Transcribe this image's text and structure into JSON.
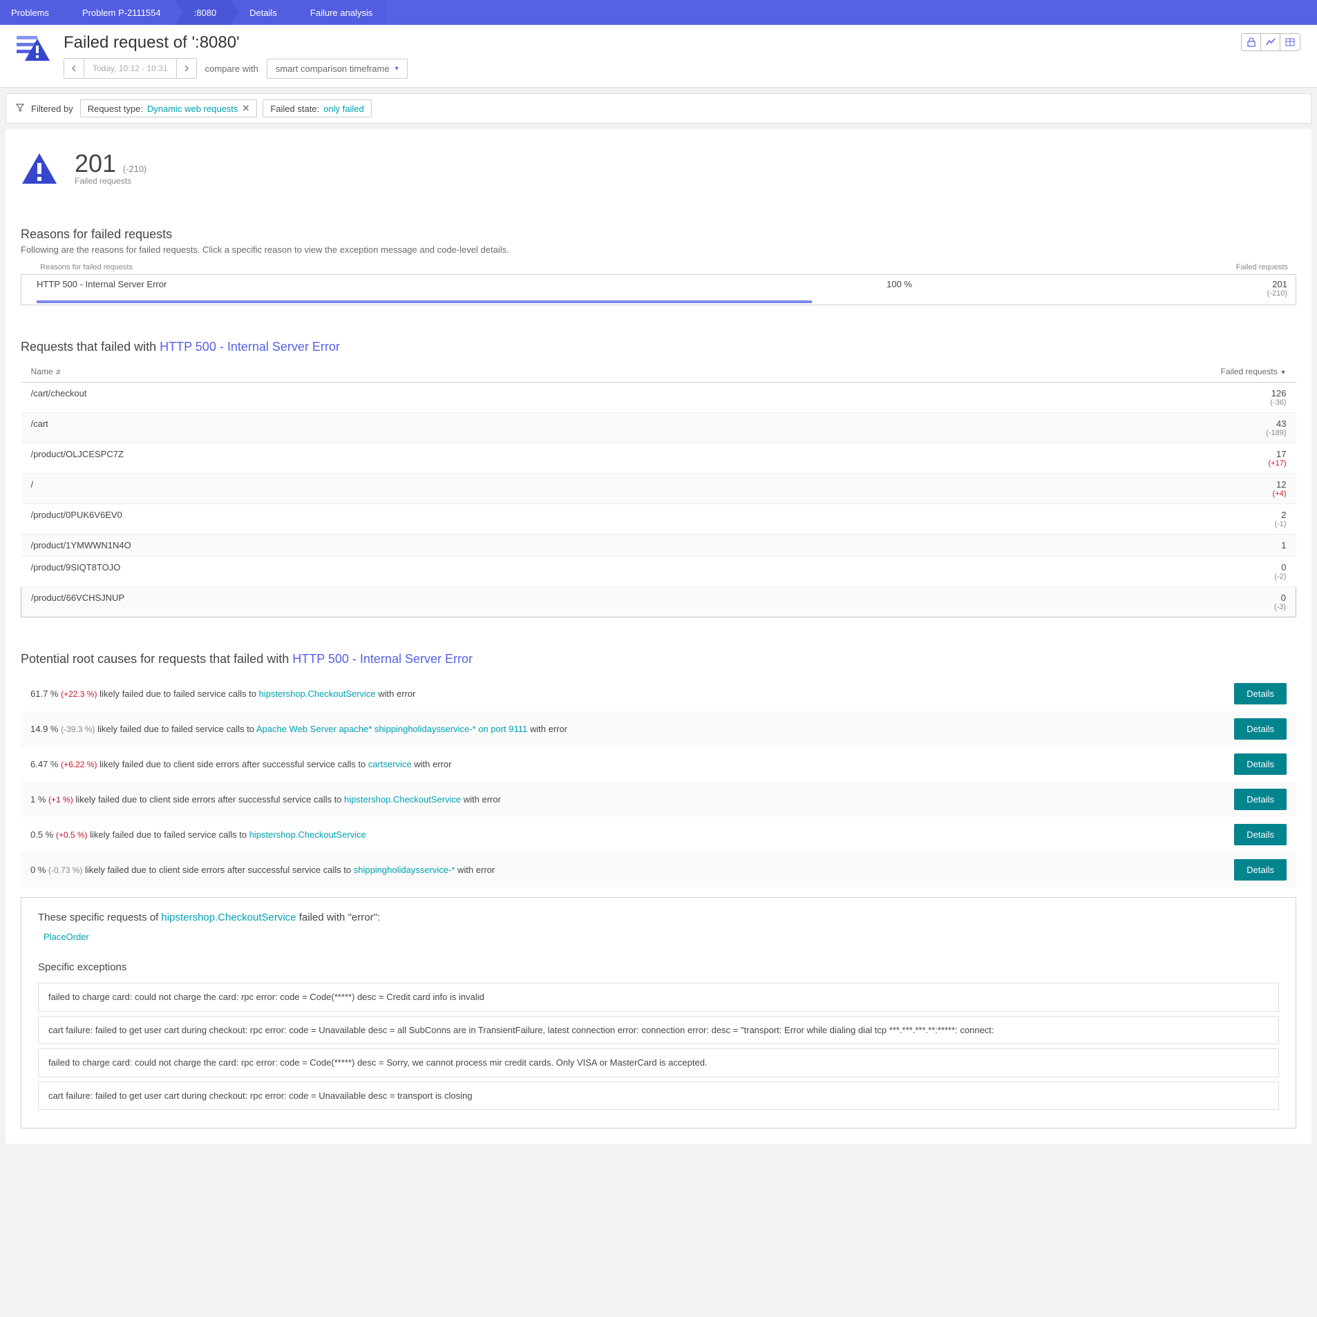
{
  "breadcrumb": [
    {
      "label": "Problems",
      "hl": false
    },
    {
      "label": "Problem P-2111554",
      "hl": false
    },
    {
      "label": ":8080",
      "hl": true
    },
    {
      "label": "Details",
      "hl": false
    },
    {
      "label": "Failure analysis",
      "hl": false
    }
  ],
  "page_title": "Failed request of ':8080'",
  "time_label": "Today, 10:12 - 10:31",
  "compare_label": "compare with",
  "compare_dropdown": "smart comparison timeframe",
  "filter": {
    "filtered_by": "Filtered by",
    "chips": [
      {
        "label": "Request type:",
        "value": "Dynamic web requests",
        "closable": true
      },
      {
        "label": "Failed state:",
        "value": "only failed",
        "closable": false
      }
    ]
  },
  "summary": {
    "count": "201",
    "delta": "(-210)",
    "label": "Failed requests",
    "triangle_color": "#3646cc"
  },
  "reasons": {
    "title": "Reasons for failed requests",
    "desc": "Following are the reasons for failed requests. Click a specific reason to view the exception message and code-level details.",
    "head_left": "Reasons for failed requests",
    "head_right": "Failed requests",
    "row": {
      "name": "HTTP 500 - Internal Server Error",
      "pct": "100 %",
      "count": "201",
      "delta": "(-210)",
      "bar_pct": 62,
      "bar_color": "#7a87ef"
    }
  },
  "requests": {
    "title_prefix": "Requests that failed with ",
    "title_link": "HTTP 500 - Internal Server Error",
    "col_name": "Name",
    "col_fr": "Failed requests",
    "rows": [
      {
        "name": "/cart/checkout",
        "count": "126",
        "delta": "(-36)",
        "pos": false
      },
      {
        "name": "/cart",
        "count": "43",
        "delta": "(-189)",
        "pos": false
      },
      {
        "name": "/product/OLJCESPC7Z",
        "count": "17",
        "delta": "(+17)",
        "pos": true
      },
      {
        "name": "/",
        "count": "12",
        "delta": "(+4)",
        "pos": true
      },
      {
        "name": "/product/0PUK6V6EV0",
        "count": "2",
        "delta": "(-1)",
        "pos": false
      },
      {
        "name": "/product/1YMWWN1N4O",
        "count": "1",
        "delta": "",
        "pos": false
      },
      {
        "name": "/product/9SIQT8TOJO",
        "count": "0",
        "delta": "(-2)",
        "pos": false
      },
      {
        "name": "/product/66VCHSJNUP",
        "count": "0",
        "delta": "(-3)",
        "pos": false
      }
    ]
  },
  "root_causes": {
    "title_prefix": "Potential root causes for requests that failed with ",
    "title_link": "HTTP 500 - Internal Server Error",
    "details_btn": "Details",
    "rows": [
      {
        "pct": "61.7 %",
        "dpct": "(+22.3 %)",
        "pos": true,
        "text_pre": " likely failed due to failed service calls to ",
        "svc": "hipstershop.CheckoutService",
        "text_post": " with error"
      },
      {
        "pct": "14.9 %",
        "dpct": "(-39.3 %)",
        "pos": false,
        "text_pre": " likely failed due to failed service calls to ",
        "svc": "Apache Web Server apache* shippingholidaysservice-* on port 9111",
        "text_post": " with error"
      },
      {
        "pct": "6.47 %",
        "dpct": "(+6.22 %)",
        "pos": true,
        "text_pre": " likely failed due to client side errors after successful service calls to ",
        "svc": "cartservice",
        "text_post": " with error"
      },
      {
        "pct": "1 %",
        "dpct": "(+1 %)",
        "pos": true,
        "text_pre": " likely failed due to client side errors after successful service calls to ",
        "svc": "hipstershop.CheckoutService",
        "text_post": " with error"
      },
      {
        "pct": "0.5 %",
        "dpct": "(+0.5 %)",
        "pos": true,
        "text_pre": " likely failed due to failed service calls to ",
        "svc": "hipstershop.CheckoutService",
        "text_post": ""
      },
      {
        "pct": "0 %",
        "dpct": "(-0.73 %)",
        "pos": false,
        "text_pre": " likely failed due to client side errors after successful service calls to ",
        "svc": "shippingholidaysservice-*",
        "text_post": " with error"
      }
    ]
  },
  "detail_box": {
    "title_pre": "These specific requests of ",
    "title_svc": "hipstershop.CheckoutService",
    "title_post": " failed with \"error\":",
    "sub_link": "PlaceOrder",
    "exc_title": "Specific exceptions",
    "exceptions": [
      "failed to charge card: could not charge the card: rpc error: code = Code(*****) desc = Credit card info is invalid",
      "cart failure: failed to get user cart during checkout: rpc error: code = Unavailable desc = all SubConns are in TransientFailure, latest connection error: connection error: desc = \"transport: Error while dialing dial tcp ***.***.***.**:*****: connect:",
      "failed to charge card: could not charge the card: rpc error: code = Code(*****) desc = Sorry, we cannot process mir credit cards. Only VISA or MasterCard is accepted.",
      "cart failure: failed to get user cart during checkout: rpc error: code = Unavailable desc = transport is closing"
    ]
  },
  "colors": {
    "accent": "#5661e3",
    "link": "#00a1b2",
    "danger": "#c41425",
    "muted": "#888888"
  }
}
